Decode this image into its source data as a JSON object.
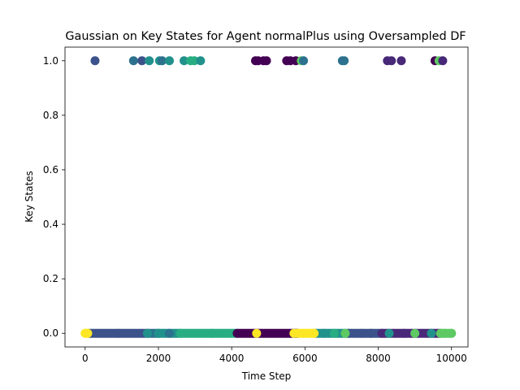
{
  "chart_data": {
    "type": "scatter",
    "title": "Gaussian on Key States for Agent normalPlus using Oversampled DF",
    "xlabel": "Time Step",
    "ylabel": "Key States",
    "xlim": [
      -550,
      10450
    ],
    "ylim": [
      -0.05,
      1.05
    ],
    "xticks": [
      0,
      2000,
      4000,
      6000,
      8000,
      10000
    ],
    "xtick_labels": [
      "0",
      "2000",
      "4000",
      "6000",
      "8000",
      "10000"
    ],
    "yticks": [
      0.0,
      0.2,
      0.4,
      0.6,
      0.8,
      1.0
    ],
    "ytick_labels": [
      "0.0",
      "0.2",
      "0.4",
      "0.6",
      "0.8",
      "1.0"
    ],
    "grid": false,
    "legend": "none",
    "colormap": "viridis",
    "bands_y0": [
      {
        "x_start": 0,
        "x_end": 120,
        "color": "#fde725"
      },
      {
        "x_start": 120,
        "x_end": 1700,
        "color": "#3b528b"
      },
      {
        "x_start": 1700,
        "x_end": 2000,
        "color": "#2c728e"
      },
      {
        "x_start": 2000,
        "x_end": 2600,
        "color": "#21918c"
      },
      {
        "x_start": 2600,
        "x_end": 4150,
        "color": "#27ad81"
      },
      {
        "x_start": 4150,
        "x_end": 5800,
        "color": "#440154"
      },
      {
        "x_start": 5800,
        "x_end": 6300,
        "color": "#fde725"
      },
      {
        "x_start": 6300,
        "x_end": 7200,
        "color": "#21918c"
      },
      {
        "x_start": 7200,
        "x_end": 8100,
        "color": "#3b528b"
      },
      {
        "x_start": 8100,
        "x_end": 9700,
        "color": "#482878"
      },
      {
        "x_start": 9700,
        "x_end": 10000,
        "color": "#5ec962"
      }
    ],
    "points": [
      {
        "x": 0,
        "y": 0,
        "color": "#fde725"
      },
      {
        "x": 70,
        "y": 0,
        "color": "#fde725"
      },
      {
        "x": 900,
        "y": 0,
        "color": "#3b528b"
      },
      {
        "x": 1700,
        "y": 0,
        "color": "#21918c"
      },
      {
        "x": 2000,
        "y": 0,
        "color": "#21918c"
      },
      {
        "x": 2300,
        "y": 0,
        "color": "#2c728e"
      },
      {
        "x": 3450,
        "y": 0,
        "color": "#27ad81"
      },
      {
        "x": 4680,
        "y": 0,
        "color": "#fde725"
      },
      {
        "x": 5700,
        "y": 0,
        "color": "#fde725"
      },
      {
        "x": 5950,
        "y": 0,
        "color": "#fde725"
      },
      {
        "x": 6050,
        "y": 0,
        "color": "#fde725"
      },
      {
        "x": 6250,
        "y": 0,
        "color": "#fde725"
      },
      {
        "x": 6500,
        "y": 0,
        "color": "#21918c"
      },
      {
        "x": 6800,
        "y": 0,
        "color": "#27ad81"
      },
      {
        "x": 7100,
        "y": 0,
        "color": "#5ec962"
      },
      {
        "x": 7550,
        "y": 0,
        "color": "#3b528b"
      },
      {
        "x": 7800,
        "y": 0,
        "color": "#3b528b"
      },
      {
        "x": 8300,
        "y": 0,
        "color": "#21918c"
      },
      {
        "x": 8700,
        "y": 0,
        "color": "#482878"
      },
      {
        "x": 9000,
        "y": 0,
        "color": "#5ec962"
      },
      {
        "x": 9450,
        "y": 0,
        "color": "#21918c"
      },
      {
        "x": 9800,
        "y": 0,
        "color": "#5ec962"
      },
      {
        "x": 10000,
        "y": 0,
        "color": "#5ec962"
      },
      {
        "x": 270,
        "y": 1,
        "color": "#3b528b"
      },
      {
        "x": 1320,
        "y": 1,
        "color": "#2c728e"
      },
      {
        "x": 1550,
        "y": 1,
        "color": "#3b528b"
      },
      {
        "x": 1750,
        "y": 1,
        "color": "#21918c"
      },
      {
        "x": 2030,
        "y": 1,
        "color": "#21918c"
      },
      {
        "x": 2100,
        "y": 1,
        "color": "#2c728e"
      },
      {
        "x": 2300,
        "y": 1,
        "color": "#21918c"
      },
      {
        "x": 2700,
        "y": 1,
        "color": "#21918c"
      },
      {
        "x": 2880,
        "y": 1,
        "color": "#27ad81"
      },
      {
        "x": 2980,
        "y": 1,
        "color": "#27ad81"
      },
      {
        "x": 3150,
        "y": 1,
        "color": "#21918c"
      },
      {
        "x": 4650,
        "y": 1,
        "color": "#440154"
      },
      {
        "x": 4720,
        "y": 1,
        "color": "#440154"
      },
      {
        "x": 4870,
        "y": 1,
        "color": "#440154"
      },
      {
        "x": 4950,
        "y": 1,
        "color": "#440154"
      },
      {
        "x": 5500,
        "y": 1,
        "color": "#440154"
      },
      {
        "x": 5600,
        "y": 1,
        "color": "#440154"
      },
      {
        "x": 5750,
        "y": 1,
        "color": "#440154"
      },
      {
        "x": 5900,
        "y": 1,
        "color": "#5ec962"
      },
      {
        "x": 5960,
        "y": 1,
        "color": "#2c728e"
      },
      {
        "x": 7020,
        "y": 1,
        "color": "#2c728e"
      },
      {
        "x": 7070,
        "y": 1,
        "color": "#2c728e"
      },
      {
        "x": 8250,
        "y": 1,
        "color": "#482878"
      },
      {
        "x": 8360,
        "y": 1,
        "color": "#482878"
      },
      {
        "x": 8630,
        "y": 1,
        "color": "#482878"
      },
      {
        "x": 9550,
        "y": 1,
        "color": "#440154"
      },
      {
        "x": 9660,
        "y": 1,
        "color": "#5ec962"
      },
      {
        "x": 9760,
        "y": 1,
        "color": "#482878"
      }
    ]
  }
}
